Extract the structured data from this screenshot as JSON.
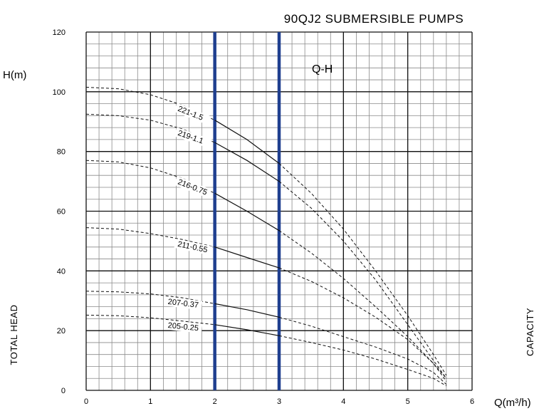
{
  "chart_data": {
    "type": "line",
    "title": "90QJ2 SUBMERSIBLE PUMPS",
    "panel_label": "Q-H",
    "ylabel": "H(m)",
    "xlabel": "Q(m³/h)",
    "left_side_label": "TOTAL HEAD",
    "right_side_label": "CAPACITY",
    "xlim": [
      0,
      6
    ],
    "ylim": [
      0,
      120
    ],
    "x_ticks": [
      0,
      1,
      2,
      3,
      4,
      5,
      6
    ],
    "y_ticks": [
      0,
      20,
      40,
      60,
      80,
      100,
      120
    ],
    "grid": true,
    "minor_grid_x_step": 0.2,
    "minor_grid_y_step": 4,
    "highlight_x": [
      2,
      3
    ],
    "highlight_color": "#1f3f8f",
    "series": [
      {
        "name": "221-1.5",
        "x": [
          0,
          0.5,
          1,
          1.5,
          2,
          2.5,
          3,
          3.5,
          4,
          4.5,
          5,
          5.4,
          5.6
        ],
        "y": [
          101.5,
          101,
          99,
          95.5,
          90.5,
          84,
          76,
          66,
          54,
          40,
          25,
          12,
          5
        ]
      },
      {
        "name": "219-1.1",
        "x": [
          0,
          0.5,
          1,
          1.5,
          2,
          2.5,
          3,
          3.5,
          4,
          4.5,
          5,
          5.4,
          5.6
        ],
        "y": [
          92.5,
          92,
          90.5,
          87.5,
          83,
          77,
          70,
          61,
          50,
          37,
          22,
          10,
          4
        ]
      },
      {
        "name": "216-0.75",
        "x": [
          0,
          0.5,
          1,
          1.5,
          2,
          2.5,
          3,
          3.5,
          4,
          4.5,
          5,
          5.4,
          5.6
        ],
        "y": [
          77,
          76.5,
          74.5,
          71,
          66,
          60,
          53.5,
          46,
          37.5,
          28,
          18,
          9,
          4
        ]
      },
      {
        "name": "211-0.55",
        "x": [
          0,
          0.5,
          1,
          1.5,
          2,
          2.5,
          3,
          3.5,
          4,
          4.5,
          5,
          5.4,
          5.6
        ],
        "y": [
          54.5,
          54,
          52.5,
          50.5,
          48,
          44.5,
          41,
          36.5,
          31,
          24.5,
          17,
          9,
          3
        ]
      },
      {
        "name": "207-0.37",
        "x": [
          0,
          0.5,
          1,
          1.5,
          2,
          2.5,
          3,
          3.5,
          4,
          4.5,
          5,
          5.4,
          5.6
        ],
        "y": [
          33.2,
          33,
          32.3,
          31,
          29,
          27,
          24.5,
          21.5,
          18,
          14.5,
          10.5,
          6,
          2
        ]
      },
      {
        "name": "205-0.25",
        "x": [
          0,
          0.5,
          1,
          1.5,
          2,
          2.5,
          3,
          3.5,
          4,
          4.5,
          5,
          5.4,
          5.6
        ],
        "y": [
          25.2,
          25,
          24.3,
          23.2,
          22,
          20.3,
          18.3,
          16,
          13.5,
          10.5,
          7,
          4,
          1.5
        ]
      }
    ]
  }
}
